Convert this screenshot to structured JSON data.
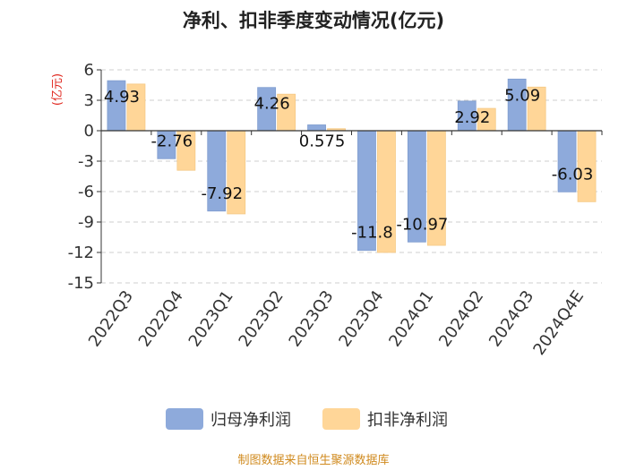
{
  "chart_data": {
    "type": "bar",
    "title": "净利、扣非季度变动情况(亿元)",
    "ylabel": "(亿元)",
    "categories": [
      "2022Q3",
      "2022Q4",
      "2023Q1",
      "2023Q2",
      "2023Q3",
      "2023Q4",
      "2024Q1",
      "2024Q2",
      "2024Q3",
      "2024Q4E"
    ],
    "series": [
      {
        "name": "归母净利润",
        "color": "#8eaadb",
        "values": [
          4.93,
          -2.76,
          -7.92,
          4.26,
          0.575,
          -11.8,
          -10.97,
          2.92,
          5.09,
          -6.03
        ],
        "labels": [
          "4.93",
          "-2.76",
          "-7.92",
          "4.26",
          "0.575",
          "-11.8",
          "-10.97",
          "2.92",
          "5.09",
          "-6.03"
        ]
      },
      {
        "name": "扣非净利润",
        "color": "#ffd698",
        "values": [
          4.6,
          -3.9,
          -8.2,
          3.6,
          0.2,
          -12.0,
          -11.3,
          2.2,
          4.3,
          -7.0
        ]
      }
    ],
    "yticks": [
      6,
      3,
      0,
      -3,
      -6,
      -9,
      -12,
      -15
    ],
    "ylim": [
      -15,
      6
    ],
    "grid": true,
    "legend_position": "bottom",
    "source": "制图数据来自恒生聚源数据库"
  }
}
